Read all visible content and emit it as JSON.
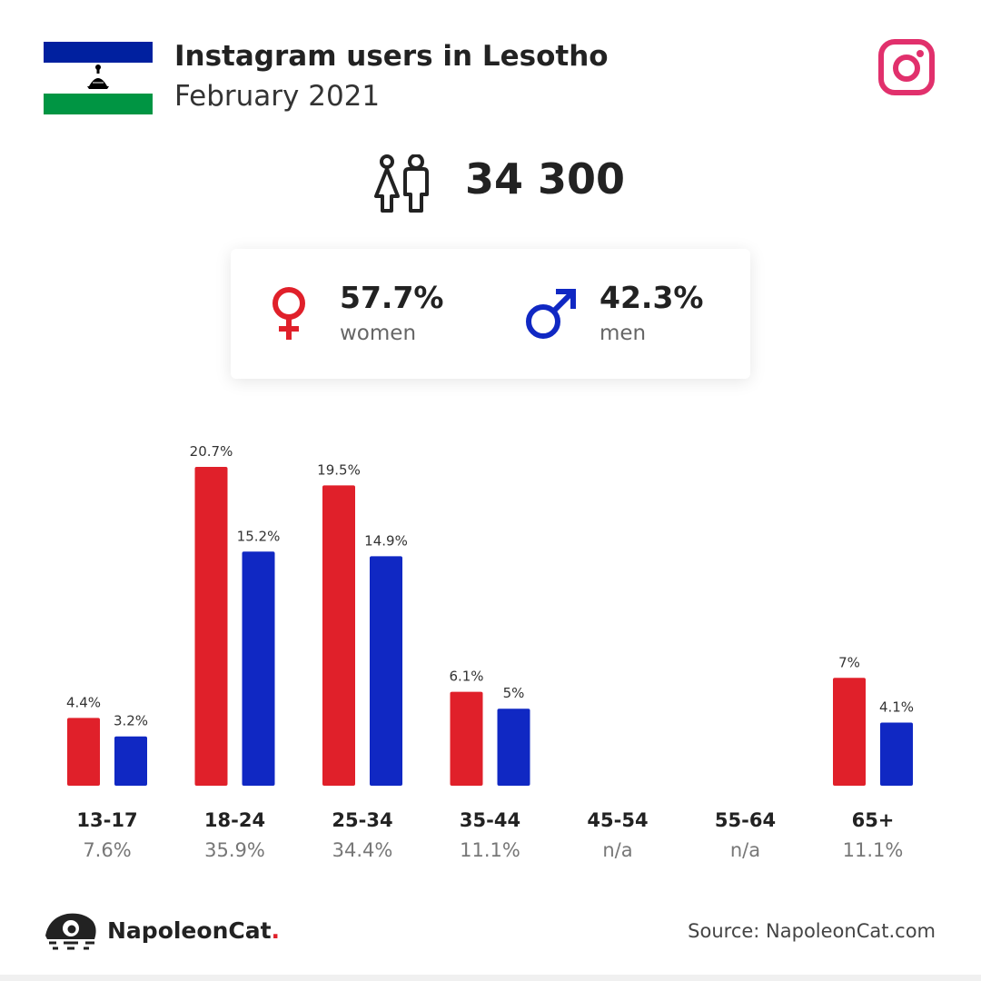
{
  "header": {
    "title": "Instagram users in Lesotho",
    "subtitle": "February 2021"
  },
  "summary": {
    "total": "34 300",
    "women": {
      "percent": "57.7%",
      "label": "women"
    },
    "men": {
      "percent": "42.3%",
      "label": "men"
    }
  },
  "colors": {
    "women": "#e0202a",
    "men": "#1028c3",
    "instagram": "#e1306c"
  },
  "icons": [
    "lesotho-flag-icon",
    "instagram-icon",
    "people-icon",
    "female-symbol-icon",
    "male-symbol-icon",
    "napoleoncat-logo-icon"
  ],
  "chart_data": {
    "type": "bar",
    "categories": [
      "13-17",
      "18-24",
      "25-34",
      "35-44",
      "45-54",
      "55-64",
      "65+"
    ],
    "category_totals": [
      "7.6%",
      "35.9%",
      "34.4%",
      "11.1%",
      "n/a",
      "n/a",
      "11.1%"
    ],
    "series": [
      {
        "values": [
          4.4,
          20.7,
          19.5,
          6.1,
          null,
          null,
          7.0
        ],
        "labels": [
          "4.4%",
          "20.7%",
          "19.5%",
          "6.1%",
          "",
          "",
          "7%"
        ]
      },
      {
        "values": [
          3.2,
          15.2,
          14.9,
          5.0,
          null,
          null,
          4.1
        ],
        "labels": [
          "3.2%",
          "15.2%",
          "14.9%",
          "5%",
          "",
          "",
          "4.1%"
        ]
      }
    ],
    "ylim": [
      0,
      20.7
    ],
    "grid": false,
    "legend": "none"
  },
  "footer": {
    "brand": "NapoleonCat",
    "brand_dot": ".",
    "source": "Source: NapoleonCat.com"
  }
}
